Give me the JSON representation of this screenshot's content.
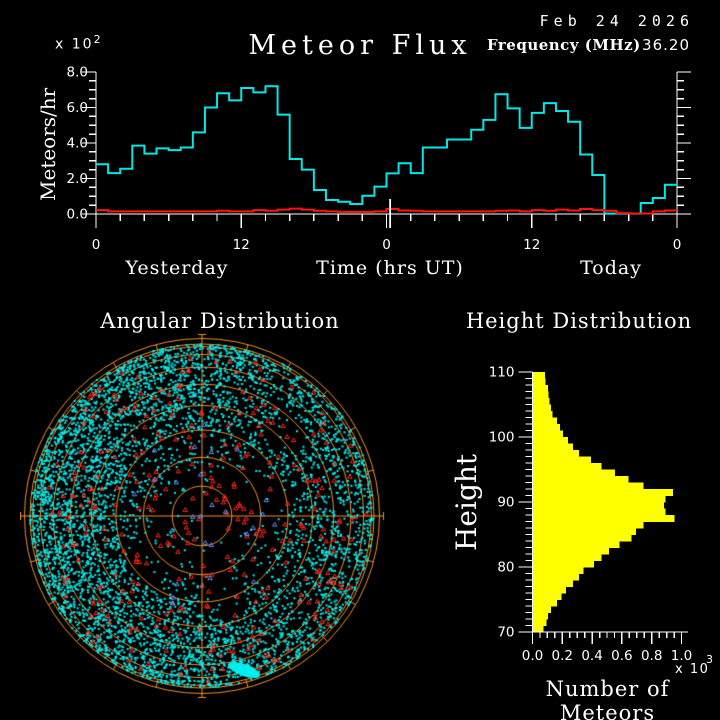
{
  "window": {
    "background": "#000000"
  },
  "flux_chart": {
    "title": "Meteor Flux",
    "date": "Feb 24 2026",
    "frequency_label": "Frequency (MHz)",
    "frequency_value": "36.20",
    "y_axis_label": "Meteors/hr",
    "y_scale_base": "x 10",
    "y_scale_exp": "2",
    "x_axis_label": "Time (hrs UT)",
    "x_section_left": "Yesterday",
    "x_section_right": "Today",
    "y_tick_labels": [
      "0.0",
      "2.0",
      "4.0",
      "6.0",
      "8.0"
    ],
    "x_tick_labels": [
      "0",
      "12",
      "0",
      "12",
      "0"
    ],
    "axis_color": "#FFFFFF",
    "flux_color": "#00E8E8",
    "secondary_color": "#FF1410"
  },
  "angular_chart": {
    "title": "Angular Distribution",
    "grid_color": "#F09028",
    "echo_color": "#00EFEF",
    "overdense_color": "#FF2616",
    "rare_color": "#5F8CFF"
  },
  "height_chart": {
    "title": "Height Distribution",
    "y_axis_label": "Height",
    "x_axis_label": "Number of Meteors",
    "x_scale_base": "x 10",
    "x_scale_exp": "3",
    "y_tick_labels": [
      "70",
      "80",
      "90",
      "100",
      "110"
    ],
    "x_tick_labels": [
      "0.0",
      "0.2",
      "0.4",
      "0.6",
      "0.8",
      "1.0"
    ],
    "bar_color": "#FFFF00",
    "axis_color": "#FFFFFF"
  },
  "chart_data": [
    {
      "id": "meteor_flux",
      "type": "line",
      "style": "step",
      "x_unit": "hours UT, two days: Yesterday 0-24 then Today 0-24",
      "x_range": [
        0,
        48
      ],
      "x_major_ticks": [
        0,
        12,
        24,
        36,
        48
      ],
      "x_major_tick_labels": [
        "0",
        "12",
        "0",
        "12",
        "0"
      ],
      "ylim": [
        0,
        8
      ],
      "y_unit": "x10^2 meteors/hr",
      "now_marker_hour": 24.3,
      "series": [
        {
          "name": "meteor flux",
          "color": "#00E8E8",
          "values": [
            2.8,
            2.3,
            2.55,
            3.85,
            3.4,
            3.7,
            3.6,
            3.75,
            4.6,
            6.0,
            6.8,
            6.4,
            7.1,
            6.85,
            7.2,
            5.6,
            3.1,
            2.5,
            1.35,
            0.79,
            0.69,
            0.56,
            1.03,
            1.54,
            2.29,
            2.86,
            2.3,
            3.75,
            3.75,
            4.2,
            4.2,
            4.75,
            5.3,
            6.75,
            5.95,
            4.85,
            5.7,
            6.25,
            5.8,
            5.2,
            3.35,
            2.2,
            0.02,
            0.02,
            0.02,
            0.62,
            0.9,
            1.65
          ]
        },
        {
          "name": "secondary low rate",
          "color": "#FF1410",
          "values": [
            0.22,
            0.15,
            0.15,
            0.15,
            0.15,
            0.15,
            0.15,
            0.15,
            0.15,
            0.15,
            0.18,
            0.15,
            0.15,
            0.22,
            0.18,
            0.25,
            0.3,
            0.25,
            0.18,
            0.15,
            0.12,
            0.12,
            0.12,
            0.15,
            0.28,
            0.2,
            0.18,
            0.15,
            0.15,
            0.15,
            0.15,
            0.15,
            0.15,
            0.18,
            0.2,
            0.15,
            0.22,
            0.18,
            0.25,
            0.2,
            0.28,
            0.22,
            0.18,
            0.05,
            0.03,
            0.03,
            0.15,
            0.2
          ]
        }
      ]
    },
    {
      "id": "angular_distribution",
      "type": "scatter",
      "projection": "all-sky polar, elevation rings every 10 deg",
      "outer_radius_px": 172,
      "boundary_radius_px": 177.5,
      "elevation_ring_degrees": [
        10,
        20,
        30,
        40,
        50,
        60,
        70,
        80
      ],
      "azimuth_tick_step_deg": 15,
      "random_seed": 20260224,
      "points": {
        "echo_candidates": 9000,
        "echo_color": "#00EFEF",
        "overdense_candidates": 430,
        "overdense_color": "#FF2616",
        "rare_candidates": 26,
        "rare_color": "#5F8CFF"
      },
      "dense_blob": {
        "x": 42,
        "y": 154,
        "rx": 17,
        "ry": 6,
        "rot": 0.35
      }
    },
    {
      "id": "height_distribution",
      "type": "bar",
      "orientation": "horizontal",
      "ylabel": "Height",
      "xlabel": "Number of Meteors",
      "x_scale": 1000,
      "xlim": [
        0,
        1.0
      ],
      "bin_start_km": 70,
      "bin_size_km": 1,
      "values": [
        0.07,
        0.09,
        0.1,
        0.12,
        0.16,
        0.19,
        0.22,
        0.27,
        0.31,
        0.34,
        0.41,
        0.46,
        0.51,
        0.58,
        0.66,
        0.69,
        0.74,
        0.95,
        0.89,
        0.88,
        0.89,
        0.94,
        0.74,
        0.64,
        0.55,
        0.46,
        0.39,
        0.31,
        0.27,
        0.235,
        0.2,
        0.18,
        0.16,
        0.13,
        0.12,
        0.11,
        0.105,
        0.1,
        0.085,
        0.08
      ]
    }
  ]
}
